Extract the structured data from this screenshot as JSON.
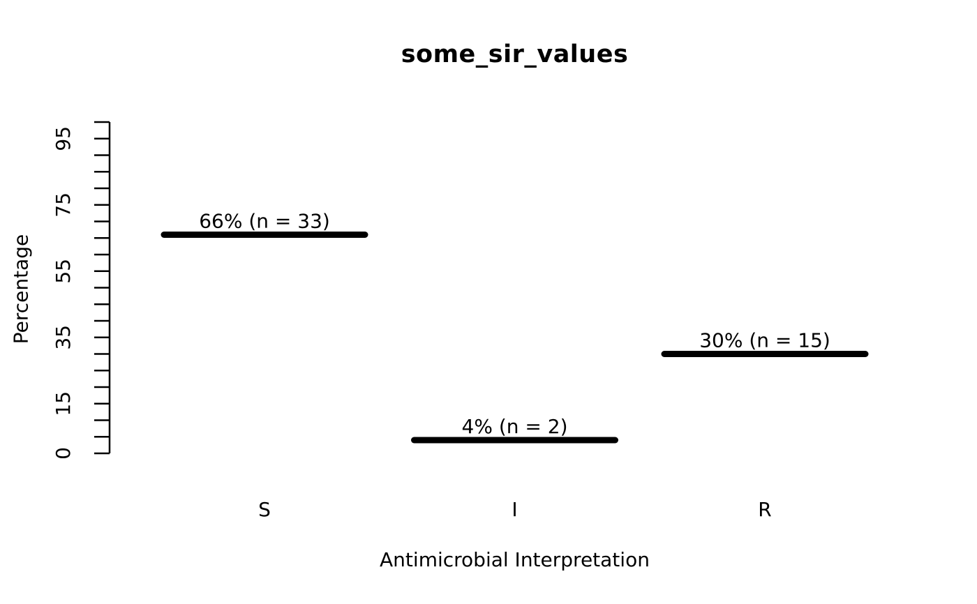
{
  "title": "some_sir_values",
  "chart_data": {
    "type": "bar",
    "style": "horizontal-segment-marks (R base plot of SIR values, black segments on white)",
    "title": "some_sir_values",
    "xlabel": "Antimicrobial Interpretation",
    "ylabel": "Percentage",
    "categories": [
      "S",
      "I",
      "R"
    ],
    "values": [
      66,
      4,
      30
    ],
    "counts": [
      33,
      2,
      15
    ],
    "bar_labels": [
      "66% (n = 33)",
      "4% (n = 2)",
      "30% (n = 15)"
    ],
    "ylim": [
      0,
      100
    ],
    "y_tick_interval": 5,
    "y_labeled_ticks": [
      "0",
      "15",
      "35",
      "55",
      "75",
      "95"
    ],
    "y_labeled_tick_values": [
      0,
      15,
      35,
      55,
      75,
      95
    ],
    "grid": false,
    "legend": null,
    "colors": {
      "foreground": "#000000",
      "background": "#ffffff"
    }
  }
}
